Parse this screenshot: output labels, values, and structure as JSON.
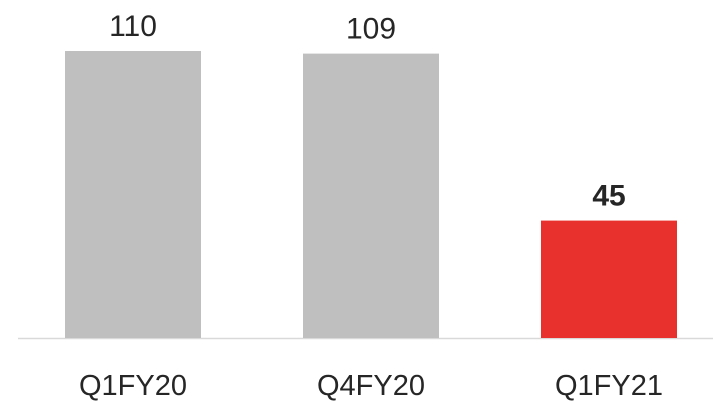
{
  "chart_data": {
    "type": "bar",
    "categories": [
      "Q1FY20",
      "Q4FY20",
      "Q1FY21"
    ],
    "values": [
      110,
      109,
      45
    ],
    "data_labels": [
      "110",
      "109",
      "45"
    ],
    "bar_colors": [
      "#bfbfbf",
      "#bfbfbf",
      "#e8312d"
    ],
    "highlight_index": 2,
    "axis_color": "#d9d9d9",
    "ylim": [
      0,
      110
    ],
    "grid": false,
    "title": "",
    "xlabel": "",
    "ylabel": ""
  }
}
